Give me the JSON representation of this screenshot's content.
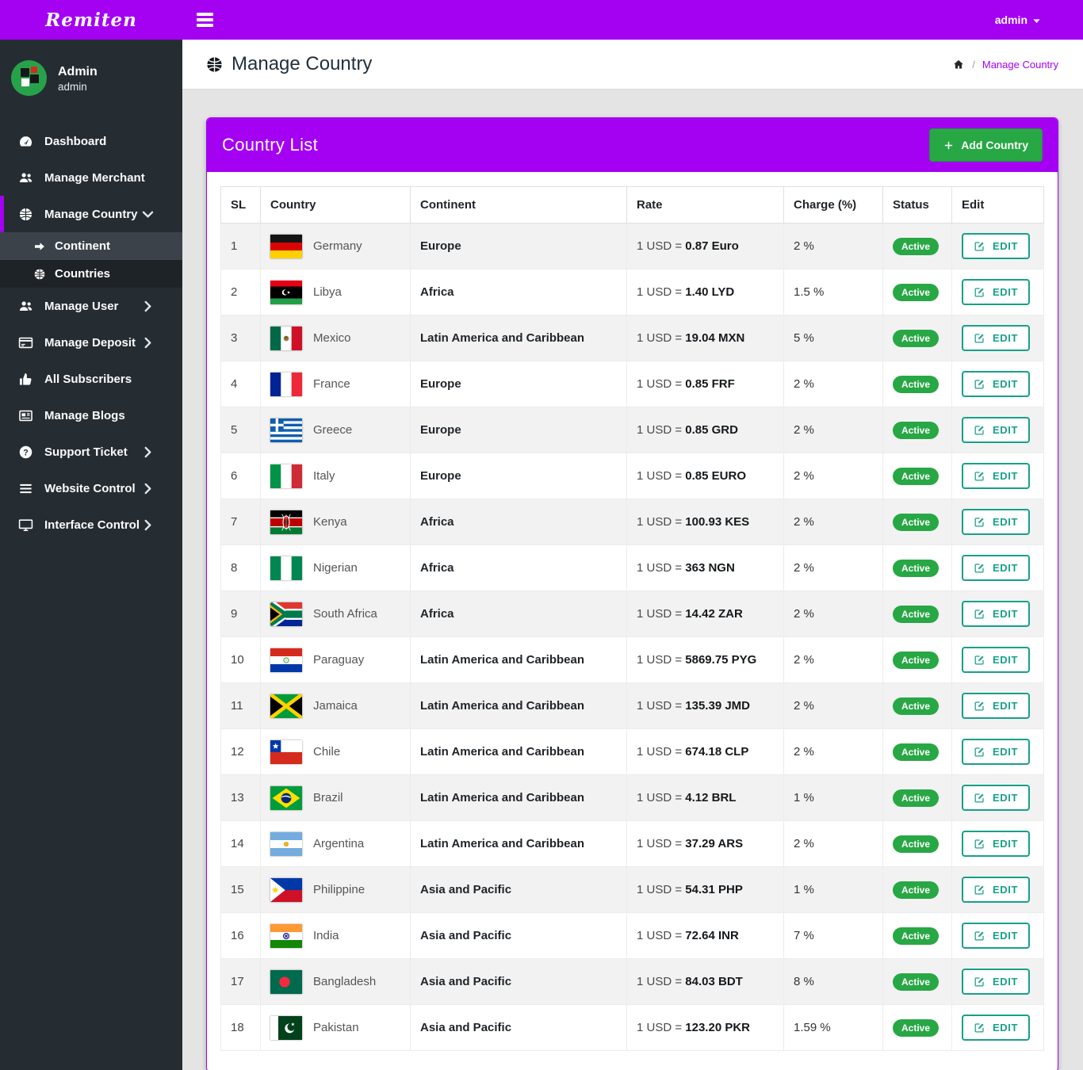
{
  "colors": {
    "accent": "#a400f2",
    "success": "#28a745",
    "edit_teal": "#17a088",
    "sidebar_bg": "#262d32",
    "content_bg": "#e4e4e4"
  },
  "topbar": {
    "brand": "Remiten",
    "user_menu": "admin"
  },
  "sidebar": {
    "profile": {
      "name": "Admin",
      "role": "admin"
    },
    "items": [
      {
        "label": "Dashboard",
        "icon": "dashboard"
      },
      {
        "label": "Manage Merchant",
        "icon": "users"
      },
      {
        "label": "Manage Country",
        "icon": "globe",
        "active": true,
        "expanded": true,
        "children": [
          {
            "label": "Continent",
            "icon": "arrow-right",
            "variant": "light"
          },
          {
            "label": "Countries",
            "icon": "globe",
            "variant": "dark"
          }
        ]
      },
      {
        "label": "Manage User",
        "icon": "users",
        "chevron": true
      },
      {
        "label": "Manage Deposit",
        "icon": "credit-card",
        "chevron": true
      },
      {
        "label": "All Subscribers",
        "icon": "thumbs-up"
      },
      {
        "label": "Manage Blogs",
        "icon": "newspaper"
      },
      {
        "label": "Support Ticket",
        "icon": "question",
        "chevron": true
      },
      {
        "label": "Website Control",
        "icon": "bars",
        "chevron": true
      },
      {
        "label": "Interface Control",
        "icon": "desktop",
        "chevron": true
      }
    ]
  },
  "page": {
    "title": "Manage Country",
    "breadcrumb": {
      "separator": "/",
      "current": "Manage Country"
    }
  },
  "card": {
    "title": "Country List",
    "add_button": "Add Country"
  },
  "table": {
    "headers": [
      "SL",
      "Country",
      "Continent",
      "Rate",
      "Charge (%)",
      "Status",
      "Edit"
    ],
    "edit_label": "EDIT",
    "rows": [
      {
        "sl": "1",
        "flag": "de",
        "country": "Germany",
        "continent": "Europe",
        "rate_prefix": "1 USD = ",
        "rate_value": "0.87 Euro",
        "charge": "2 %",
        "status": "Active"
      },
      {
        "sl": "2",
        "flag": "ly",
        "country": "Libya",
        "continent": "Africa",
        "rate_prefix": "1 USD = ",
        "rate_value": "1.40 LYD",
        "charge": "1.5 %",
        "status": "Active"
      },
      {
        "sl": "3",
        "flag": "mx",
        "country": "Mexico",
        "continent": "Latin America and Caribbean",
        "rate_prefix": "1 USD = ",
        "rate_value": "19.04 MXN",
        "charge": "5 %",
        "status": "Active"
      },
      {
        "sl": "4",
        "flag": "fr",
        "country": "France",
        "continent": "Europe",
        "rate_prefix": "1 USD = ",
        "rate_value": "0.85 FRF",
        "charge": "2 %",
        "status": "Active"
      },
      {
        "sl": "5",
        "flag": "gr",
        "country": "Greece",
        "continent": "Europe",
        "rate_prefix": "1 USD = ",
        "rate_value": "0.85 GRD",
        "charge": "2 %",
        "status": "Active"
      },
      {
        "sl": "6",
        "flag": "it",
        "country": "Italy",
        "continent": "Europe",
        "rate_prefix": "1 USD = ",
        "rate_value": "0.85 EURO",
        "charge": "2 %",
        "status": "Active"
      },
      {
        "sl": "7",
        "flag": "ke",
        "country": "Kenya",
        "continent": "Africa",
        "rate_prefix": "1 USD = ",
        "rate_value": "100.93 KES",
        "charge": "2 %",
        "status": "Active"
      },
      {
        "sl": "8",
        "flag": "ng",
        "country": "Nigerian",
        "continent": "Africa",
        "rate_prefix": "1 USD = ",
        "rate_value": "363 NGN",
        "charge": "2 %",
        "status": "Active"
      },
      {
        "sl": "9",
        "flag": "za",
        "country": "South Africa",
        "continent": "Africa",
        "rate_prefix": "1 USD = ",
        "rate_value": "14.42 ZAR",
        "charge": "2 %",
        "status": "Active"
      },
      {
        "sl": "10",
        "flag": "py",
        "country": "Paraguay",
        "continent": "Latin America and Caribbean",
        "rate_prefix": "1 USD = ",
        "rate_value": "5869.75 PYG",
        "charge": "2 %",
        "status": "Active"
      },
      {
        "sl": "11",
        "flag": "jm",
        "country": "Jamaica",
        "continent": "Latin America and Caribbean",
        "rate_prefix": "1 USD = ",
        "rate_value": "135.39 JMD",
        "charge": "2 %",
        "status": "Active"
      },
      {
        "sl": "12",
        "flag": "cl",
        "country": "Chile",
        "continent": "Latin America and Caribbean",
        "rate_prefix": "1 USD = ",
        "rate_value": "674.18 CLP",
        "charge": "2 %",
        "status": "Active"
      },
      {
        "sl": "13",
        "flag": "br",
        "country": "Brazil",
        "continent": "Latin America and Caribbean",
        "rate_prefix": "1 USD = ",
        "rate_value": "4.12 BRL",
        "charge": "1 %",
        "status": "Active"
      },
      {
        "sl": "14",
        "flag": "ar",
        "country": "Argentina",
        "continent": "Latin America and Caribbean",
        "rate_prefix": "1 USD = ",
        "rate_value": "37.29 ARS",
        "charge": "2 %",
        "status": "Active"
      },
      {
        "sl": "15",
        "flag": "ph",
        "country": "Philippine",
        "continent": "Asia and Pacific",
        "rate_prefix": "1 USD = ",
        "rate_value": "54.31 PHP",
        "charge": "1 %",
        "status": "Active"
      },
      {
        "sl": "16",
        "flag": "in",
        "country": "India",
        "continent": "Asia and Pacific",
        "rate_prefix": "1 USD = ",
        "rate_value": "72.64 INR",
        "charge": "7 %",
        "status": "Active"
      },
      {
        "sl": "17",
        "flag": "bd",
        "country": "Bangladesh",
        "continent": "Asia and Pacific",
        "rate_prefix": "1 USD = ",
        "rate_value": "84.03 BDT",
        "charge": "8 %",
        "status": "Active"
      },
      {
        "sl": "18",
        "flag": "pk",
        "country": "Pakistan",
        "continent": "Asia and Pacific",
        "rate_prefix": "1 USD = ",
        "rate_value": "123.20 PKR",
        "charge": "1.59 %",
        "status": "Active"
      }
    ]
  }
}
